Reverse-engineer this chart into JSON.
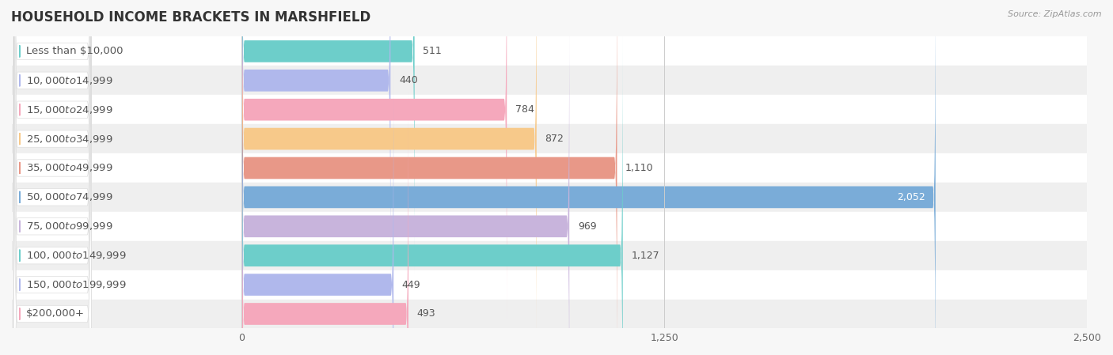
{
  "title": "HOUSEHOLD INCOME BRACKETS IN MARSHFIELD",
  "source": "Source: ZipAtlas.com",
  "categories": [
    "Less than $10,000",
    "$10,000 to $14,999",
    "$15,000 to $24,999",
    "$25,000 to $34,999",
    "$35,000 to $49,999",
    "$50,000 to $74,999",
    "$75,000 to $99,999",
    "$100,000 to $149,999",
    "$150,000 to $199,999",
    "$200,000+"
  ],
  "values": [
    511,
    440,
    784,
    872,
    1110,
    2052,
    969,
    1127,
    449,
    493
  ],
  "bar_colors": [
    "#6dceca",
    "#b0b8ec",
    "#f5a8bc",
    "#f7c98a",
    "#e89888",
    "#7aacd8",
    "#c8b4dc",
    "#6dceca",
    "#b0b8ec",
    "#f5a8bc"
  ],
  "xlim_left": -680,
  "xlim_right": 2500,
  "xticks": [
    0,
    1250,
    2500
  ],
  "bar_height": 0.72,
  "background_color": "#f7f7f7",
  "row_even_color": "#ffffff",
  "row_odd_color": "#efefef",
  "title_fontsize": 12,
  "label_fontsize": 9.5,
  "value_fontsize": 9,
  "value_color_default": "#555555",
  "value_color_inbar": "#ffffff",
  "label_box_color": "#ffffff",
  "label_text_color": "#555555"
}
